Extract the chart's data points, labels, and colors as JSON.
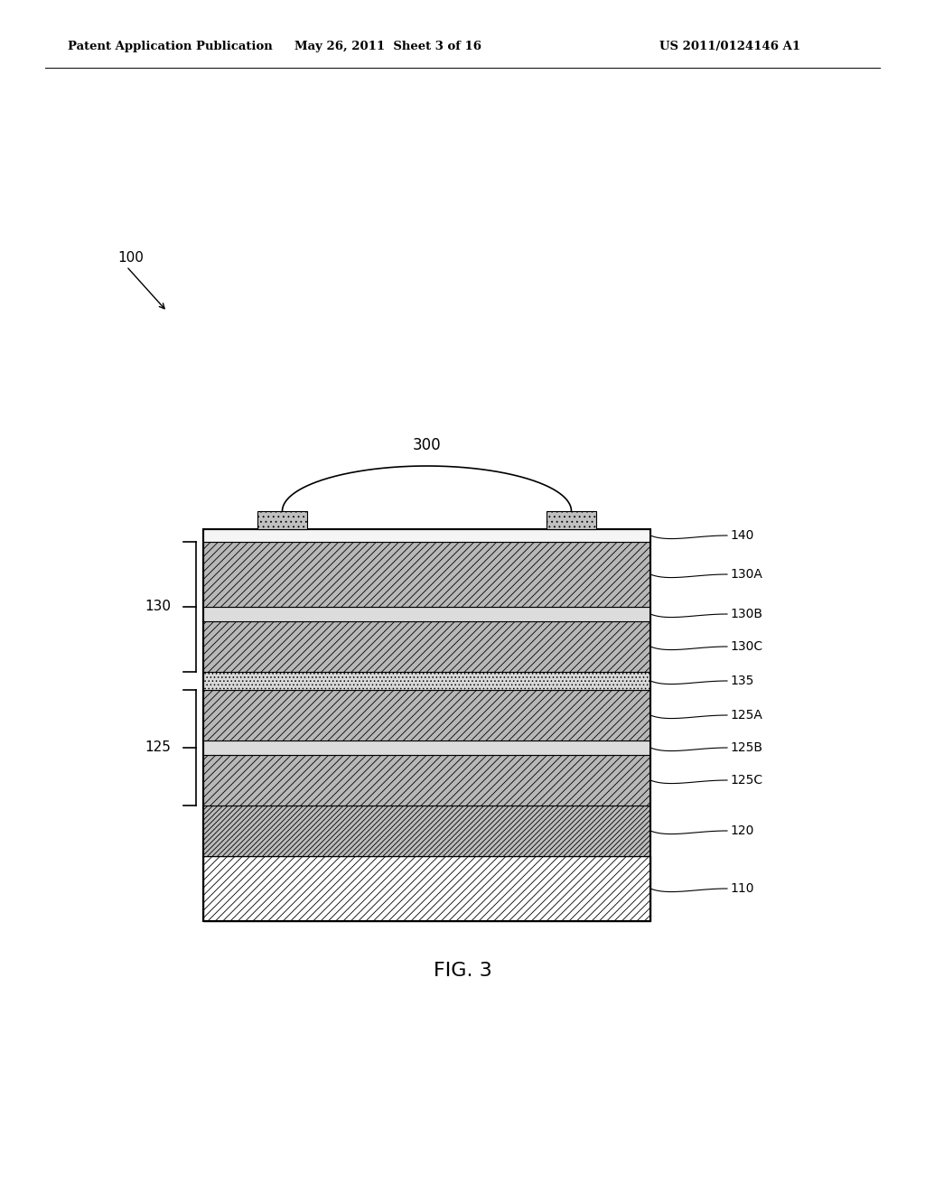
{
  "header_left": "Patent Application Publication",
  "header_mid": "May 26, 2011  Sheet 3 of 16",
  "header_right": "US 2011/0124146 A1",
  "fig_label": "FIG. 3",
  "label_100": "100",
  "label_300": "300",
  "label_110": "110",
  "label_120": "120",
  "label_125": "125",
  "label_125A": "125A",
  "label_125B": "125B",
  "label_125C": "125C",
  "label_130": "130",
  "label_130A": "130A",
  "label_130B": "130B",
  "label_130C": "130C",
  "label_135": "135",
  "label_140": "140",
  "background_color": "#ffffff"
}
